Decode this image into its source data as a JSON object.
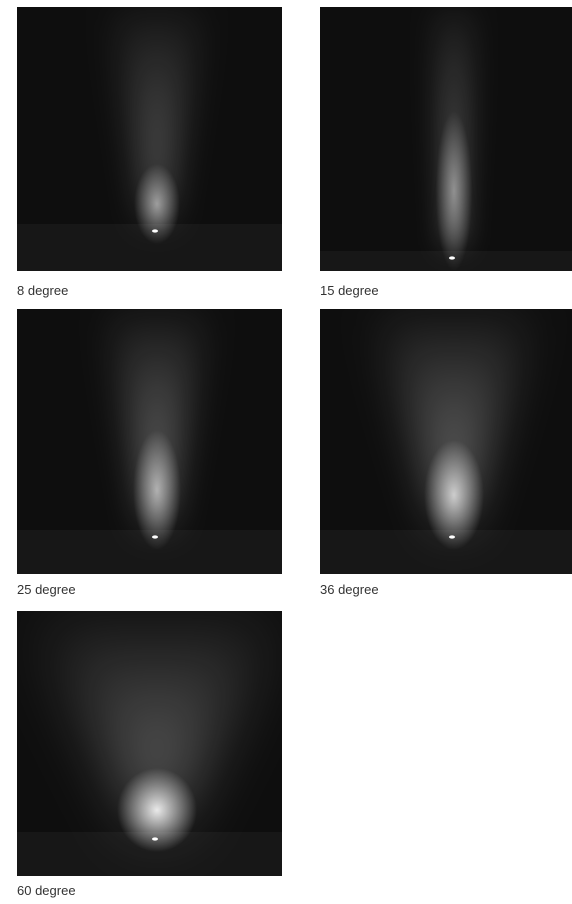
{
  "items": [
    {
      "caption": "8 degree"
    },
    {
      "caption": "15 degree"
    },
    {
      "caption": "25 degree"
    },
    {
      "caption": "36 degree"
    },
    {
      "caption": "60 degree"
    }
  ]
}
